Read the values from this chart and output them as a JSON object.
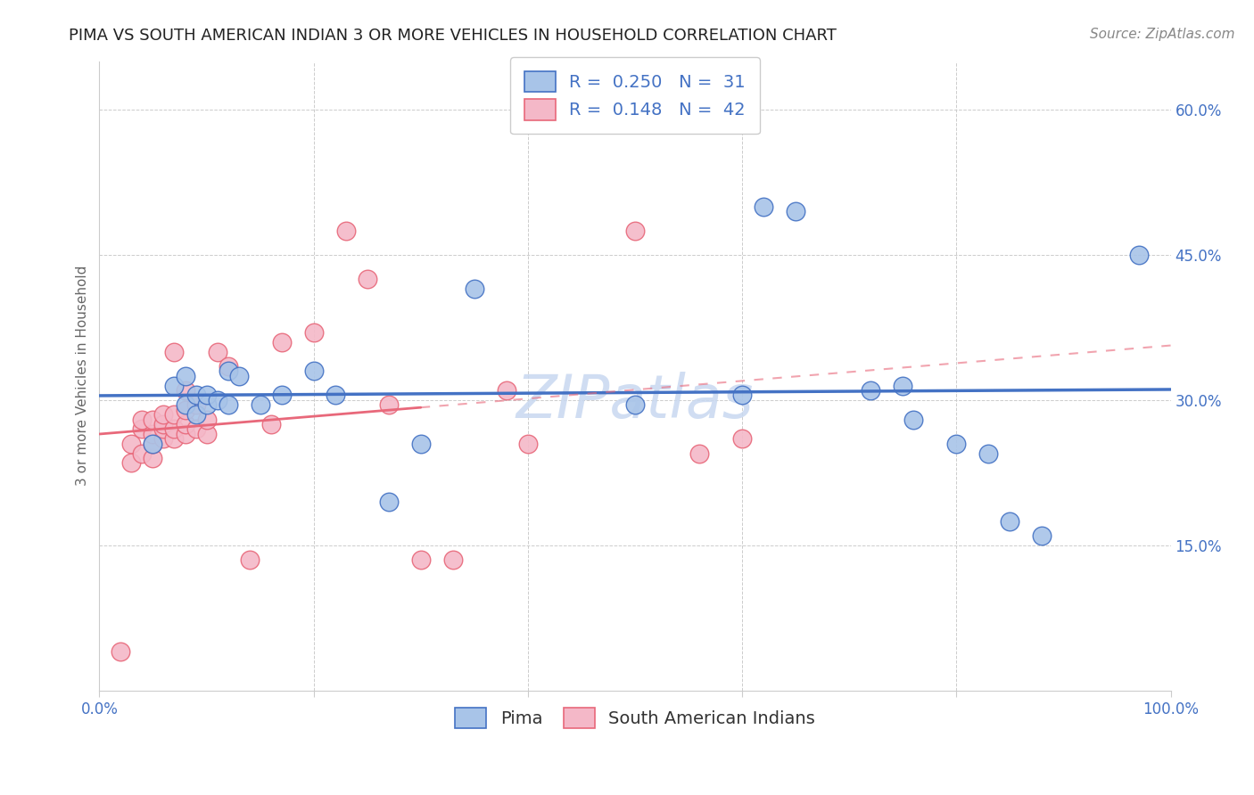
{
  "title": "PIMA VS SOUTH AMERICAN INDIAN 3 OR MORE VEHICLES IN HOUSEHOLD CORRELATION CHART",
  "source": "Source: ZipAtlas.com",
  "ylabel": "3 or more Vehicles in Household",
  "watermark": "ZIPatlas",
  "R_pima": 0.25,
  "N_pima": 31,
  "R_sa": 0.148,
  "N_sa": 42,
  "xlim": [
    0.0,
    1.0
  ],
  "ylim": [
    0.0,
    0.65
  ],
  "xticks": [
    0.0,
    0.2,
    0.4,
    0.6,
    0.8,
    1.0
  ],
  "yticks": [
    0.0,
    0.15,
    0.3,
    0.45,
    0.6
  ],
  "xticklabels": [
    "0.0%",
    "",
    "",
    "",
    "",
    "100.0%"
  ],
  "yticklabels": [
    "",
    "15.0%",
    "30.0%",
    "45.0%",
    "60.0%"
  ],
  "color_pima_fill": "#a8c4e8",
  "color_pima_edge": "#4472c4",
  "color_sa_fill": "#f4b8c8",
  "color_sa_edge": "#e8687a",
  "color_pima_line": "#4472c4",
  "color_sa_line": "#e8687a",
  "pima_x": [
    0.05,
    0.07,
    0.08,
    0.08,
    0.09,
    0.09,
    0.1,
    0.1,
    0.11,
    0.12,
    0.12,
    0.13,
    0.15,
    0.17,
    0.2,
    0.22,
    0.27,
    0.3,
    0.35,
    0.5,
    0.6,
    0.62,
    0.65,
    0.72,
    0.75,
    0.76,
    0.8,
    0.83,
    0.85,
    0.88,
    0.97
  ],
  "pima_y": [
    0.255,
    0.315,
    0.295,
    0.325,
    0.285,
    0.305,
    0.295,
    0.305,
    0.3,
    0.295,
    0.33,
    0.325,
    0.295,
    0.305,
    0.33,
    0.305,
    0.195,
    0.255,
    0.415,
    0.295,
    0.305,
    0.5,
    0.495,
    0.31,
    0.315,
    0.28,
    0.255,
    0.245,
    0.175,
    0.16,
    0.45
  ],
  "sa_x": [
    0.02,
    0.03,
    0.03,
    0.04,
    0.04,
    0.04,
    0.05,
    0.05,
    0.05,
    0.05,
    0.06,
    0.06,
    0.06,
    0.06,
    0.07,
    0.07,
    0.07,
    0.07,
    0.08,
    0.08,
    0.08,
    0.08,
    0.09,
    0.09,
    0.1,
    0.1,
    0.11,
    0.12,
    0.14,
    0.16,
    0.17,
    0.2,
    0.23,
    0.25,
    0.27,
    0.3,
    0.33,
    0.38,
    0.4,
    0.5,
    0.56,
    0.6
  ],
  "sa_y": [
    0.04,
    0.235,
    0.255,
    0.245,
    0.27,
    0.28,
    0.24,
    0.255,
    0.265,
    0.28,
    0.26,
    0.27,
    0.275,
    0.285,
    0.26,
    0.27,
    0.285,
    0.35,
    0.265,
    0.275,
    0.29,
    0.31,
    0.27,
    0.295,
    0.265,
    0.28,
    0.35,
    0.335,
    0.135,
    0.275,
    0.36,
    0.37,
    0.475,
    0.425,
    0.295,
    0.135,
    0.135,
    0.31,
    0.255,
    0.475,
    0.245,
    0.26
  ],
  "title_fontsize": 13,
  "axis_label_fontsize": 11,
  "tick_fontsize": 12,
  "legend_fontsize": 14,
  "source_fontsize": 11,
  "watermark_fontsize": 48,
  "background_color": "#ffffff",
  "grid_color": "#cccccc"
}
